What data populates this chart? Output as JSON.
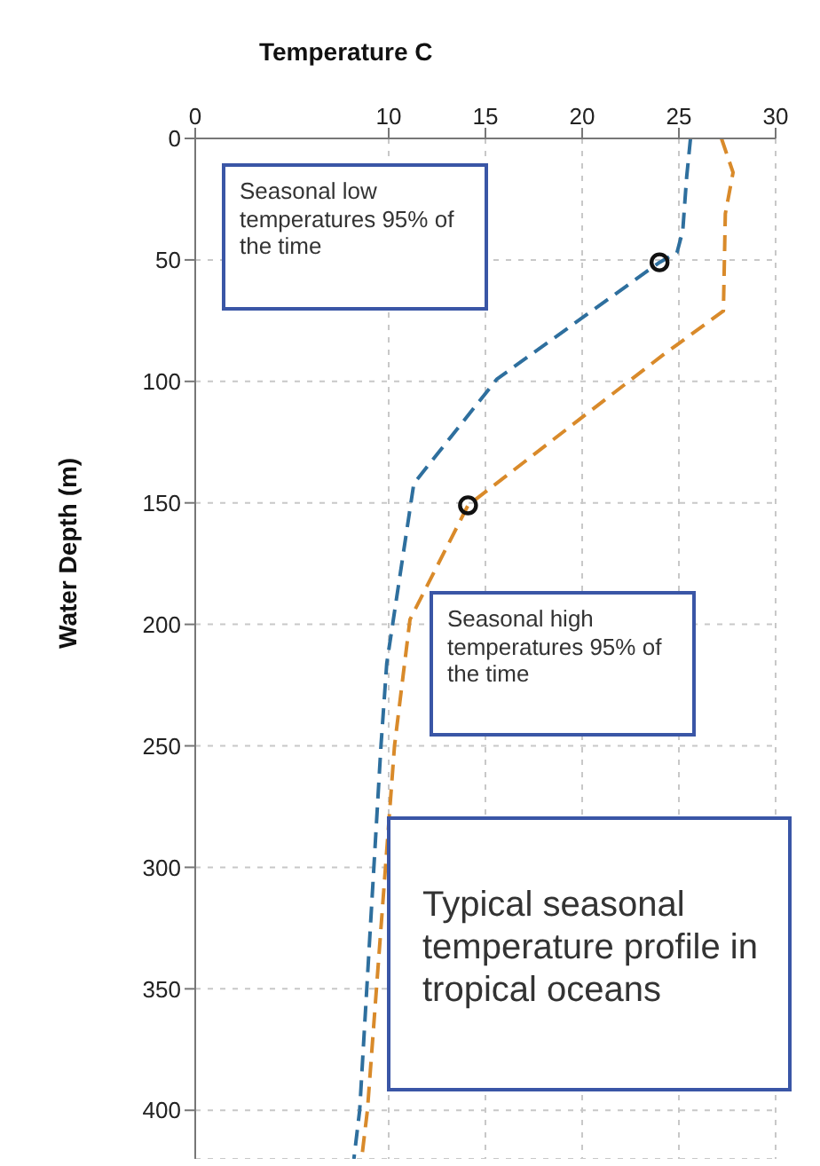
{
  "chart_data": {
    "type": "line",
    "xlabel": "Temperature C",
    "ylabel": "Water Depth (m)",
    "xlim": [
      0,
      30
    ],
    "xticks": [
      0,
      10,
      15,
      20,
      25,
      30
    ],
    "ylim": [
      420,
      0
    ],
    "yticks": [
      0,
      50,
      100,
      150,
      200,
      250,
      300,
      350,
      400
    ],
    "grid": true,
    "line_style": "dashed",
    "marker": "none",
    "series": [
      {
        "color": "#2e6f9e",
        "x": [
          25.6,
          25.4,
          25.2,
          24.9,
          24.0,
          15.6,
          11.3,
          9.9,
          9.6,
          8.5,
          8.2
        ],
        "values": [
          0,
          16,
          38,
          47,
          51,
          99,
          142,
          216,
          250,
          400,
          420
        ]
      },
      {
        "color": "#d98a2a",
        "x": [
          27.2,
          27.8,
          27.4,
          27.3,
          24.2,
          14.1,
          11.1,
          10.3,
          8.9,
          8.6
        ],
        "values": [
          0,
          14,
          31,
          71,
          89,
          151,
          198,
          250,
          400,
          420
        ]
      },
      {
        "type": "scatter",
        "color": "#111111",
        "marker": "circle",
        "x": [
          24.0,
          14.1
        ],
        "values": [
          51,
          151
        ]
      }
    ],
    "annotations": [
      "Seasonal low temperatures 95% of the time",
      "Seasonal high temperatures 95% of the time",
      "Typical seasonal temperature profile in tropical oceans"
    ]
  }
}
